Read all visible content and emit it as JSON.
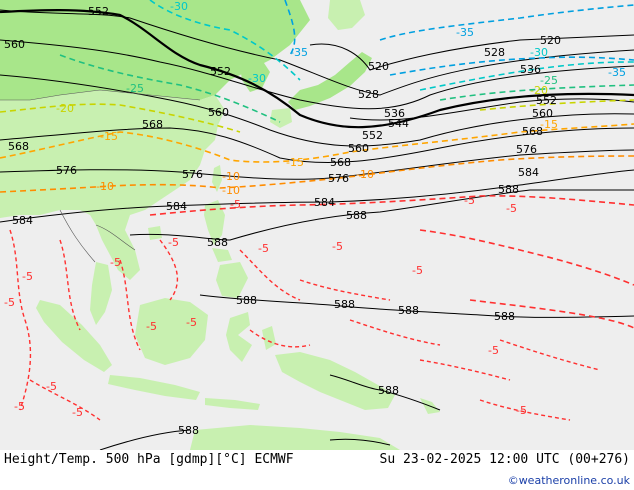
{
  "footer": {
    "title": "Height/Temp. 500 hPa [gdmp][°C] ECMWF",
    "valid_time": "Su 23-02-2025 12:00 UTC (00+276)",
    "credit": "©weatheronline.co.uk"
  },
  "colors": {
    "sea": "#eeeeee",
    "land_dark": "#a8e68a",
    "land": "#c8f0b0",
    "height_contour": "#000000",
    "temp_minus5": "#ff3030",
    "temp_minus10": "#ff8c00",
    "temp_minus15": "#ffa500",
    "temp_minus20": "#c8d400",
    "temp_minus25": "#20c080",
    "temp_minus30": "#00c8c8",
    "temp_minus35": "#00a0e0"
  },
  "height_labels": [
    "552",
    "560",
    "552",
    "560",
    "568",
    "568",
    "576",
    "576",
    "584",
    "584",
    "584",
    "588",
    "588",
    "588",
    "588",
    "588",
    "588",
    "520",
    "528",
    "528",
    "536",
    "536",
    "544",
    "552",
    "552",
    "560",
    "560",
    "568",
    "568",
    "576",
    "576",
    "584",
    "588",
    "520",
    "588",
    "588"
  ],
  "temp_labels": [
    "-30",
    "-25",
    "-20",
    "-15",
    "-15",
    "-10",
    "-10",
    "-10",
    "-5",
    "-5",
    "-5",
    "-5",
    "-5",
    "-5",
    "-5",
    "-5",
    "-5",
    "-5",
    "-5",
    "-5",
    "-35",
    "-35",
    "-30",
    "-30",
    "-25",
    "-20",
    "-15",
    "-10",
    "-5",
    "-5",
    "-35",
    "-5",
    "-5",
    "-5"
  ]
}
